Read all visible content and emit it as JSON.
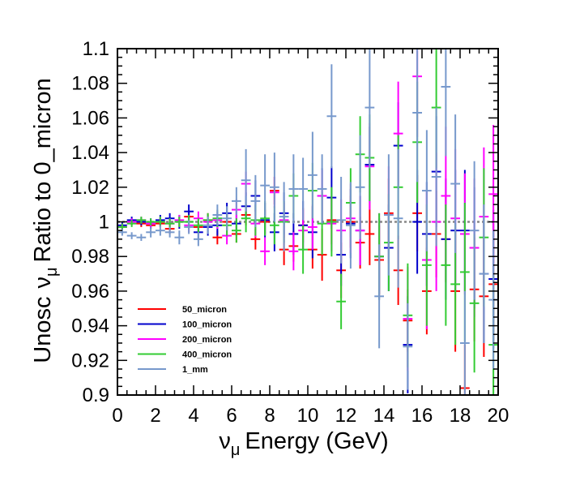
{
  "chart_data": {
    "type": "scatter",
    "style": "error-bars",
    "ylabel": {
      "prefix": "Unosc",
      "nu": "ν",
      "sub": "μ",
      "suffix": "Ratio to 0_micron"
    },
    "xlabel": {
      "nu": "ν",
      "sub": "μ",
      "suffix": "Energy (GeV)"
    },
    "xlim": [
      0,
      20
    ],
    "ylim": [
      0.9,
      1.1
    ],
    "x_ticks": [
      0,
      2,
      4,
      6,
      8,
      10,
      12,
      14,
      16,
      18,
      20
    ],
    "y_ticks": [
      0.9,
      0.92,
      0.94,
      0.96,
      0.98,
      1,
      1.02,
      1.04,
      1.06,
      1.08,
      1.1
    ],
    "y_tick_labels": [
      "0.9",
      "0.92",
      "0.94",
      "0.96",
      "0.98",
      "1",
      "1.02",
      "1.04",
      "1.06",
      "1.08",
      "1.1"
    ],
    "reference_line": 1.0,
    "bin_half_width": 0.25,
    "legend_position": "bottom-left",
    "series": [
      {
        "name": "50_micron",
        "color": "#ff0000",
        "x": [
          0.25,
          0.75,
          1.25,
          1.75,
          2.25,
          2.75,
          3.25,
          3.75,
          4.25,
          4.75,
          5.25,
          5.75,
          6.25,
          6.75,
          7.25,
          7.75,
          8.25,
          8.75,
          9.25,
          9.75,
          10.25,
          10.75,
          11.25,
          11.75,
          12.25,
          12.75,
          13.25,
          13.75,
          14.25,
          14.75,
          15.25,
          15.75,
          16.25,
          16.75,
          17.25,
          17.75,
          18.25,
          18.75,
          19.25,
          19.75
        ],
        "y": [
          0.997,
          1.0,
          0.999,
          0.998,
          0.999,
          0.996,
          1.0,
          1.003,
          0.997,
          1.001,
          0.991,
          1.0,
          0.993,
          1.004,
          0.99,
          1.0,
          1.018,
          0.984,
          0.986,
          0.998,
          0.984,
          0.981,
          1.001,
          0.972,
          1.0,
          0.988,
          0.993,
          0.978,
          1.005,
          0.972,
          0.943,
          1.005,
          0.96,
          0.993,
          0.99,
          0.96,
          0.904,
          0.961,
          0.957,
          0.964
        ],
        "err": [
          0.001,
          0.002,
          0.002,
          0.002,
          0.002,
          0.003,
          0.003,
          0.003,
          0.003,
          0.004,
          0.004,
          0.005,
          0.005,
          0.006,
          0.006,
          0.007,
          0.008,
          0.009,
          0.009,
          0.01,
          0.011,
          0.015,
          0.014,
          0.016,
          0.015,
          0.015,
          0.018,
          0.02,
          0.02,
          0.02,
          0.018,
          0.022,
          0.025,
          0.025,
          0.025,
          0.035,
          0.025,
          0.03,
          0.035,
          0.035
        ]
      },
      {
        "name": "100_micron",
        "color": "#0000cc",
        "x": [
          0.25,
          0.75,
          1.25,
          1.75,
          2.25,
          2.75,
          3.25,
          3.75,
          4.25,
          4.75,
          5.25,
          5.75,
          6.25,
          6.75,
          7.25,
          7.75,
          8.25,
          8.75,
          9.25,
          9.75,
          10.25,
          10.75,
          11.25,
          11.75,
          12.25,
          12.75,
          13.25,
          13.75,
          14.25,
          14.75,
          15.25,
          15.75,
          16.25,
          16.75,
          17.25,
          17.75,
          18.25,
          18.75,
          19.25,
          19.75
        ],
        "y": [
          0.998,
          1.001,
          1.0,
          0.999,
          1.001,
          1.002,
          1.0,
          1.006,
          0.994,
          0.997,
          0.998,
          1.005,
          0.999,
          1.009,
          1.015,
          1.001,
          0.994,
          1.005,
          0.993,
          0.998,
          0.994,
          1.015,
          1.014,
          0.981,
          0.999,
          0.995,
          1.033,
          0.98,
          0.985,
          1.044,
          0.929,
          1.0,
          0.993,
          1.029,
          0.99,
          0.995,
          0.995,
          0.985,
          0.97,
          0.967
        ],
        "err": [
          0.002,
          0.002,
          0.002,
          0.003,
          0.003,
          0.003,
          0.004,
          0.004,
          0.004,
          0.005,
          0.006,
          0.006,
          0.007,
          0.008,
          0.009,
          0.01,
          0.011,
          0.012,
          0.012,
          0.014,
          0.015,
          0.016,
          0.018,
          0.018,
          0.02,
          0.02,
          0.022,
          0.022,
          0.025,
          0.025,
          0.028,
          0.03,
          0.03,
          0.032,
          0.035,
          0.035,
          0.035,
          0.035,
          0.04,
          0.04
        ]
      },
      {
        "name": "200_micron",
        "color": "#ff00ff",
        "x": [
          0.25,
          0.75,
          1.25,
          1.75,
          2.25,
          2.75,
          3.25,
          3.75,
          4.25,
          4.75,
          5.25,
          5.75,
          6.25,
          6.75,
          7.25,
          7.75,
          8.25,
          8.75,
          9.25,
          9.75,
          10.25,
          10.75,
          11.25,
          11.75,
          12.25,
          12.75,
          13.25,
          13.75,
          14.25,
          14.75,
          15.25,
          15.75,
          16.25,
          16.75,
          17.25,
          17.75,
          18.25,
          18.75,
          19.25,
          19.75
        ],
        "y": [
          0.997,
          1.0,
          1.001,
          0.999,
          1.0,
          0.999,
          1.001,
          0.998,
          1.002,
          1.0,
          1.001,
          0.992,
          1.007,
          1.022,
          0.999,
          0.983,
          1.017,
          1.001,
          0.983,
          0.995,
          0.997,
          1.015,
          0.999,
          0.995,
          1.002,
          0.995,
          1.032,
          0.98,
          1.004,
          1.051,
          0.944,
          1.084,
          0.978,
          1.0,
          1.015,
          1.002,
          0.993,
          0.985,
          1.003,
          1.016
        ],
        "err": [
          0.002,
          0.002,
          0.002,
          0.002,
          0.003,
          0.003,
          0.003,
          0.004,
          0.004,
          0.004,
          0.005,
          0.005,
          0.006,
          0.007,
          0.008,
          0.008,
          0.009,
          0.01,
          0.011,
          0.012,
          0.013,
          0.015,
          0.016,
          0.018,
          0.02,
          0.02,
          0.025,
          0.025,
          0.028,
          0.03,
          0.03,
          0.035,
          0.04,
          0.04,
          0.04,
          0.04,
          0.035,
          0.04,
          0.04,
          0.04
        ]
      },
      {
        "name": "400_micron",
        "color": "#33cc33",
        "x": [
          0.25,
          0.75,
          1.25,
          1.75,
          2.25,
          2.75,
          3.25,
          3.75,
          4.25,
          4.75,
          5.25,
          5.75,
          6.25,
          6.75,
          7.25,
          7.75,
          8.25,
          8.75,
          9.25,
          9.75,
          10.25,
          10.75,
          11.25,
          11.75,
          12.25,
          12.75,
          13.25,
          13.75,
          14.25,
          14.75,
          15.25,
          15.75,
          16.25,
          16.75,
          17.25,
          17.75,
          18.25,
          18.75,
          19.25,
          19.75
        ],
        "y": [
          0.997,
          0.999,
          1.001,
          1.0,
          1.0,
          0.999,
          1.0,
          1.0,
          0.998,
          1.001,
          1.002,
          0.998,
          0.995,
          1.002,
          1.001,
          1.002,
          0.998,
          1.0,
          1.015,
          0.984,
          1.018,
          0.999,
          1.0,
          0.954,
          1.011,
          1.039,
          1.037,
          0.98,
          0.988,
          1.02,
          0.946,
          1.046,
          0.975,
          1.066,
          0.975,
          0.964,
          0.971,
          0.953,
          0.991,
          0.929
        ],
        "err": [
          0.002,
          0.002,
          0.002,
          0.002,
          0.003,
          0.003,
          0.003,
          0.004,
          0.004,
          0.004,
          0.005,
          0.006,
          0.007,
          0.008,
          0.009,
          0.01,
          0.011,
          0.012,
          0.013,
          0.014,
          0.016,
          0.018,
          0.02,
          0.016,
          0.02,
          0.022,
          0.025,
          0.025,
          0.028,
          0.03,
          0.03,
          0.035,
          0.035,
          0.035,
          0.035,
          0.035,
          0.04,
          0.04,
          0.04,
          0.04
        ]
      },
      {
        "name": "1_mm",
        "color": "#7799cc",
        "x": [
          0.25,
          0.75,
          1.25,
          1.75,
          2.25,
          2.75,
          3.25,
          3.75,
          4.25,
          4.75,
          5.25,
          5.75,
          6.25,
          6.75,
          7.25,
          7.75,
          8.25,
          8.75,
          9.25,
          9.75,
          10.25,
          10.75,
          11.25,
          11.75,
          12.25,
          12.75,
          13.25,
          13.75,
          14.25,
          14.75,
          15.25,
          15.75,
          16.25,
          16.75,
          17.25,
          17.75,
          18.25,
          18.75,
          19.25,
          19.75
        ],
        "y": [
          0.994,
          0.992,
          0.991,
          0.994,
          0.995,
          0.994,
          0.991,
          0.997,
          0.99,
          0.998,
          1.004,
          1.002,
          1.012,
          1.024,
          1.012,
          1.021,
          1.02,
          1.003,
          1.019,
          1.019,
          1.027,
          1.019,
          1.061,
          1.001,
          0.998,
          1.02,
          1.066,
          0.957,
          1.004,
          1.002,
          0.928,
          1.063,
          1.018,
          1.026,
          1.078,
          1.022,
          0.93,
          0.995,
          0.97,
          0.955
        ],
        "err": [
          0.002,
          0.002,
          0.002,
          0.003,
          0.003,
          0.003,
          0.004,
          0.004,
          0.004,
          0.005,
          0.006,
          0.007,
          0.008,
          0.018,
          0.015,
          0.018,
          0.02,
          0.02,
          0.02,
          0.018,
          0.025,
          0.02,
          0.03,
          0.025,
          0.025,
          0.03,
          0.035,
          0.03,
          0.035,
          0.04,
          0.025,
          0.04,
          0.035,
          0.04,
          0.04,
          0.04,
          0.03,
          0.04,
          0.04,
          0.04
        ]
      }
    ]
  }
}
